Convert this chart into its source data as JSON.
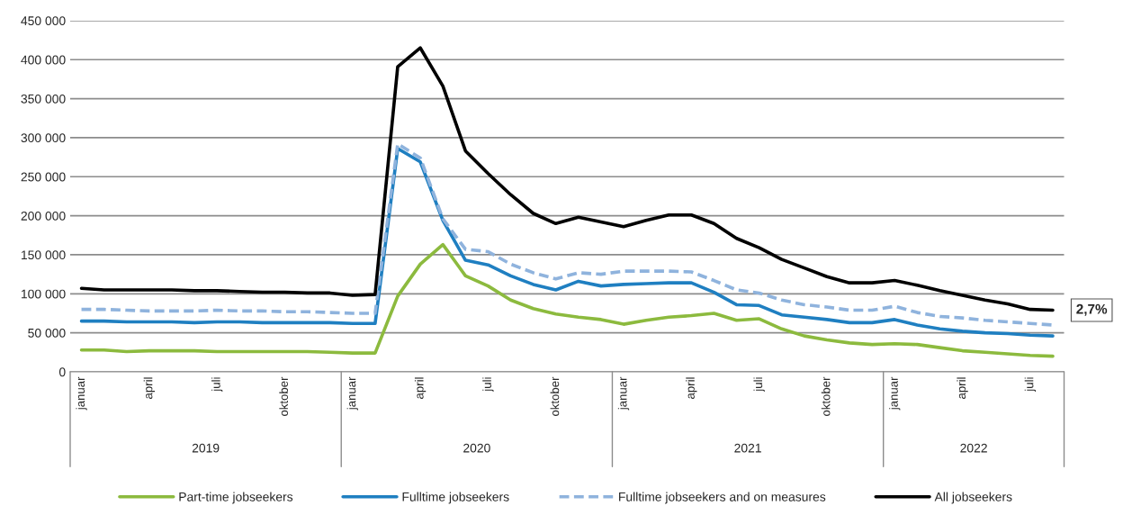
{
  "chart_data": {
    "type": "line",
    "categories": [
      "januar",
      null,
      null,
      "april",
      null,
      null,
      "juli",
      null,
      null,
      "oktober",
      null,
      null,
      "januar",
      null,
      null,
      "april",
      null,
      null,
      "juli",
      null,
      null,
      "oktober",
      null,
      null,
      "januar",
      null,
      null,
      "april",
      null,
      null,
      "juli",
      null,
      null,
      "oktober",
      null,
      null,
      "januar",
      null,
      null,
      "april",
      null,
      null,
      "juli",
      null
    ],
    "series": [
      {
        "name": "Part-time jobseekers",
        "color": "#8cba3e",
        "values": [
          28000,
          28000,
          26000,
          27000,
          27000,
          27000,
          26000,
          26000,
          26000,
          26000,
          26000,
          25000,
          24000,
          24000,
          97000,
          138000,
          163000,
          123000,
          110000,
          92000,
          81000,
          74000,
          70000,
          67000,
          61000,
          66000,
          70000,
          72000,
          75000,
          66000,
          68000,
          55000,
          46000,
          41000,
          37000,
          35000,
          36000,
          35000,
          31000,
          27000,
          25000,
          23000,
          21000,
          20000
        ]
      },
      {
        "name": "Fulltime jobseekers",
        "color": "#1f7fc1",
        "values": [
          65000,
          65000,
          64000,
          64000,
          64000,
          63000,
          64000,
          64000,
          63000,
          63000,
          63000,
          63000,
          62000,
          62000,
          286000,
          269000,
          194000,
          143000,
          137000,
          123000,
          112000,
          105000,
          116000,
          110000,
          112000,
          113000,
          114000,
          114000,
          102000,
          86000,
          85000,
          73000,
          70000,
          67000,
          63000,
          63000,
          67000,
          60000,
          55000,
          52000,
          50000,
          49000,
          47000,
          46000
        ]
      },
      {
        "name": "Fulltime jobseekers and on measures",
        "color": "#8fb3dd",
        "line_style": "dashed",
        "values": [
          80000,
          80000,
          79000,
          78000,
          78000,
          78000,
          79000,
          78000,
          78000,
          77000,
          77000,
          76000,
          75000,
          75000,
          292000,
          274000,
          196000,
          157000,
          154000,
          138000,
          127000,
          119000,
          127000,
          125000,
          129000,
          129000,
          129000,
          128000,
          117000,
          105000,
          101000,
          92000,
          86000,
          83000,
          79000,
          79000,
          84000,
          76000,
          71000,
          69000,
          66000,
          64000,
          62000,
          60000
        ]
      },
      {
        "name": "All jobseekers",
        "color": "#000000",
        "values": [
          107000,
          105000,
          105000,
          105000,
          105000,
          104000,
          104000,
          103000,
          102000,
          102000,
          101000,
          101000,
          98000,
          99000,
          391000,
          415000,
          366000,
          283000,
          254000,
          227000,
          203000,
          190000,
          198000,
          192000,
          186000,
          194000,
          201000,
          201000,
          190000,
          171000,
          159000,
          144000,
          133000,
          122000,
          114000,
          114000,
          117000,
          111000,
          104000,
          98000,
          92000,
          87000,
          80000,
          79000
        ]
      }
    ],
    "ylim": [
      0,
      450000
    ],
    "yticks": [
      0,
      {
        "value": 50000,
        "label": "50 000"
      },
      {
        "value": 100000,
        "label": "100 000"
      },
      {
        "value": 150000,
        "label": "150 000"
      },
      {
        "value": 200000,
        "label": "200 000"
      },
      {
        "value": 250000,
        "label": "250 000"
      },
      {
        "value": 300000,
        "label": "300 000"
      },
      {
        "value": 350000,
        "label": "350 000"
      },
      {
        "value": 400000,
        "label": "400 000"
      },
      {
        "value": 450000,
        "label": "450 000"
      }
    ],
    "annotations": [
      "2,7%",
      "2019",
      "2020",
      "2021",
      "2022"
    ],
    "grid": "y",
    "legend": "bottom",
    "line_style": "solid",
    "marker": "none"
  }
}
